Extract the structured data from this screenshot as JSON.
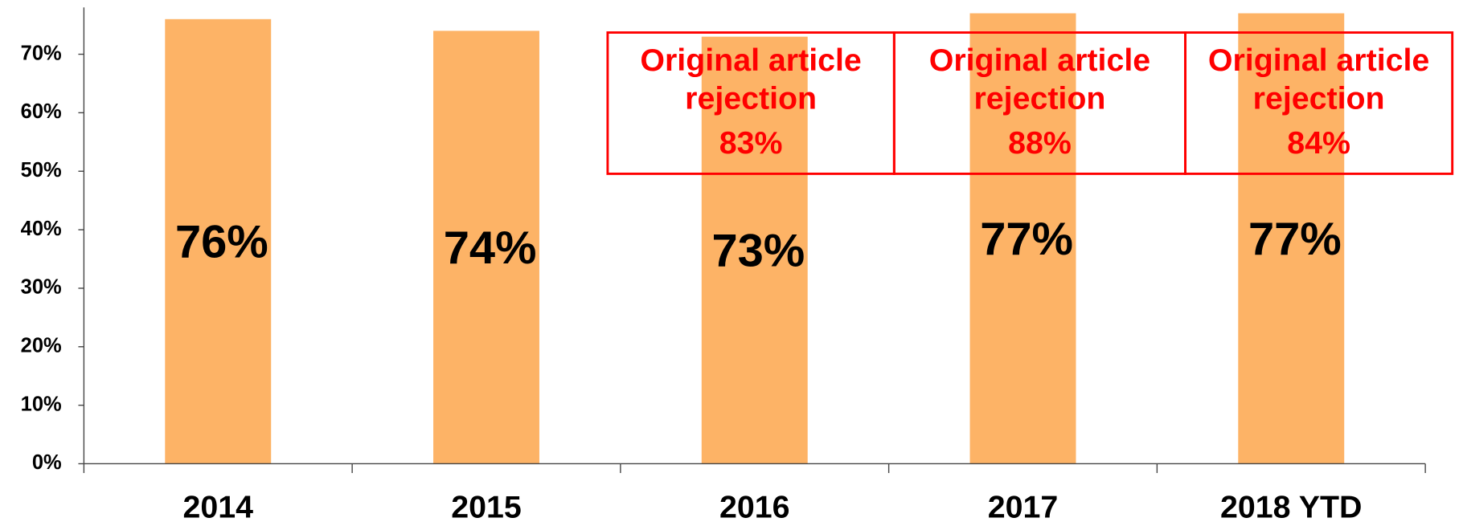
{
  "chart_data": {
    "type": "bar",
    "categories": [
      "2014",
      "2015",
      "2016",
      "2017",
      "2018 YTD"
    ],
    "values": [
      76,
      74,
      73,
      77,
      77
    ],
    "value_labels": [
      "76%",
      "74%",
      "73%",
      "77%",
      "77%"
    ],
    "color": "#fdb366",
    "ylim": [
      0,
      78
    ],
    "yticks": [
      {
        "value": 0,
        "label": "0%"
      },
      {
        "value": 10,
        "label": "10%"
      },
      {
        "value": 20,
        "label": "20%"
      },
      {
        "value": 30,
        "label": "30%"
      },
      {
        "value": 40,
        "label": "40%"
      },
      {
        "value": 50,
        "label": "50%"
      },
      {
        "value": 60,
        "label": "60%"
      },
      {
        "value": 70,
        "label": "70%"
      }
    ],
    "annotations": [
      {
        "text": [
          "Original article",
          "rejection",
          "83%"
        ]
      },
      {
        "text": [
          "Original article",
          "rejection",
          "88%"
        ]
      },
      {
        "text": [
          "Original article",
          "rejection",
          "84%"
        ]
      }
    ]
  }
}
